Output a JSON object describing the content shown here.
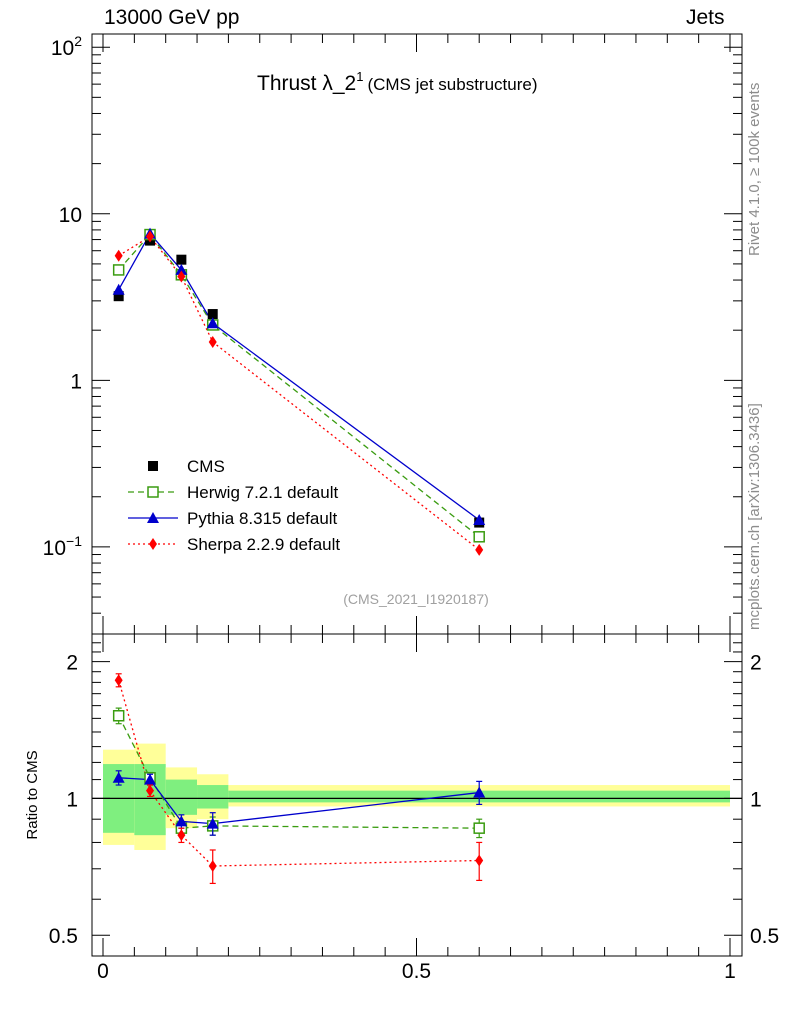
{
  "header": {
    "left": "13000 GeV pp",
    "right": "Jets"
  },
  "side_labels": {
    "rivet": "Rivet 4.1.0, ≥ 100k events",
    "source": "mcplots.cern.ch [arXiv:1306.3436]"
  },
  "chart_data": {
    "type": "scatter",
    "title_main": "Thrust λ_2",
    "title_sup": "1",
    "title_sub": "(CMS jet substructure)",
    "watermark": "(CMS_2021_I1920187)",
    "x_ticks": [
      "0",
      "0.5",
      "1"
    ],
    "xlim": [
      0,
      1
    ],
    "main_panel": {
      "yscale": "log",
      "ylim": [
        0.03,
        120
      ],
      "y_tick_labels": [
        {
          "value": 100,
          "base": "10",
          "exp": "2"
        },
        {
          "value": 10,
          "base": "10",
          "exp": ""
        },
        {
          "value": 1,
          "base": "1",
          "exp": ""
        },
        {
          "value": 0.1,
          "base": "10",
          "exp": "−1"
        }
      ]
    },
    "ratio_panel": {
      "ylabel": "Ratio to CMS",
      "ylim": [
        0.45,
        2.3
      ],
      "y_tick_labels": [
        "0.5",
        "1",
        "2"
      ],
      "y_tick_values": [
        0.5,
        1,
        2
      ]
    },
    "bins": [
      {
        "lo": 0.0,
        "hi": 0.05
      },
      {
        "lo": 0.05,
        "hi": 0.1
      },
      {
        "lo": 0.1,
        "hi": 0.15
      },
      {
        "lo": 0.15,
        "hi": 0.2
      },
      {
        "lo": 0.2,
        "hi": 1.0
      }
    ],
    "band_stat": [
      [
        0.84,
        1.19
      ],
      [
        0.83,
        1.19
      ],
      [
        0.92,
        1.1
      ],
      [
        0.95,
        1.07
      ],
      [
        0.98,
        1.04
      ]
    ],
    "band_total": [
      [
        0.79,
        1.28
      ],
      [
        0.77,
        1.32
      ],
      [
        0.86,
        1.17
      ],
      [
        0.9,
        1.13
      ],
      [
        0.96,
        1.07
      ]
    ],
    "series": [
      {
        "name": "CMS",
        "legend": "CMS",
        "color": "#000000",
        "marker": "square",
        "line": "none",
        "x": [
          0.025,
          0.075,
          0.125,
          0.175,
          0.6
        ],
        "y": [
          3.2,
          6.9,
          5.3,
          2.5,
          0.14
        ],
        "ratio": [
          1,
          1,
          1,
          1,
          1
        ],
        "ratio_err": [
          0,
          0,
          0,
          0,
          0
        ]
      },
      {
        "name": "Herwig",
        "legend": "Herwig 7.2.1 default",
        "color": "#3a9c10",
        "marker": "open-square",
        "line": "dashed",
        "x": [
          0.025,
          0.075,
          0.125,
          0.175,
          0.6
        ],
        "y": [
          4.6,
          7.5,
          4.3,
          2.15,
          0.115
        ],
        "ratio": [
          1.52,
          1.11,
          0.86,
          0.87,
          0.86
        ],
        "ratio_err": [
          0.06,
          0.03,
          0.03,
          0.04,
          0.04
        ]
      },
      {
        "name": "Pythia",
        "legend": "Pythia 8.315 default",
        "color": "#0000cc",
        "marker": "triangle",
        "line": "solid",
        "x": [
          0.025,
          0.075,
          0.125,
          0.175,
          0.6
        ],
        "y": [
          3.5,
          7.6,
          4.6,
          2.2,
          0.145
        ],
        "ratio": [
          1.11,
          1.1,
          0.89,
          0.88,
          1.03
        ],
        "ratio_err": [
          0.04,
          0.03,
          0.03,
          0.05,
          0.06
        ]
      },
      {
        "name": "Sherpa",
        "legend": "Sherpa 2.2.9 default",
        "color": "#ff0000",
        "marker": "diamond",
        "line": "dotted",
        "x": [
          0.025,
          0.075,
          0.125,
          0.175,
          0.6
        ],
        "y": [
          5.6,
          7.3,
          4.2,
          1.7,
          0.096
        ],
        "ratio": [
          1.82,
          1.04,
          0.83,
          0.71,
          0.73
        ],
        "ratio_err": [
          0.06,
          0.03,
          0.03,
          0.06,
          0.07
        ]
      }
    ]
  }
}
